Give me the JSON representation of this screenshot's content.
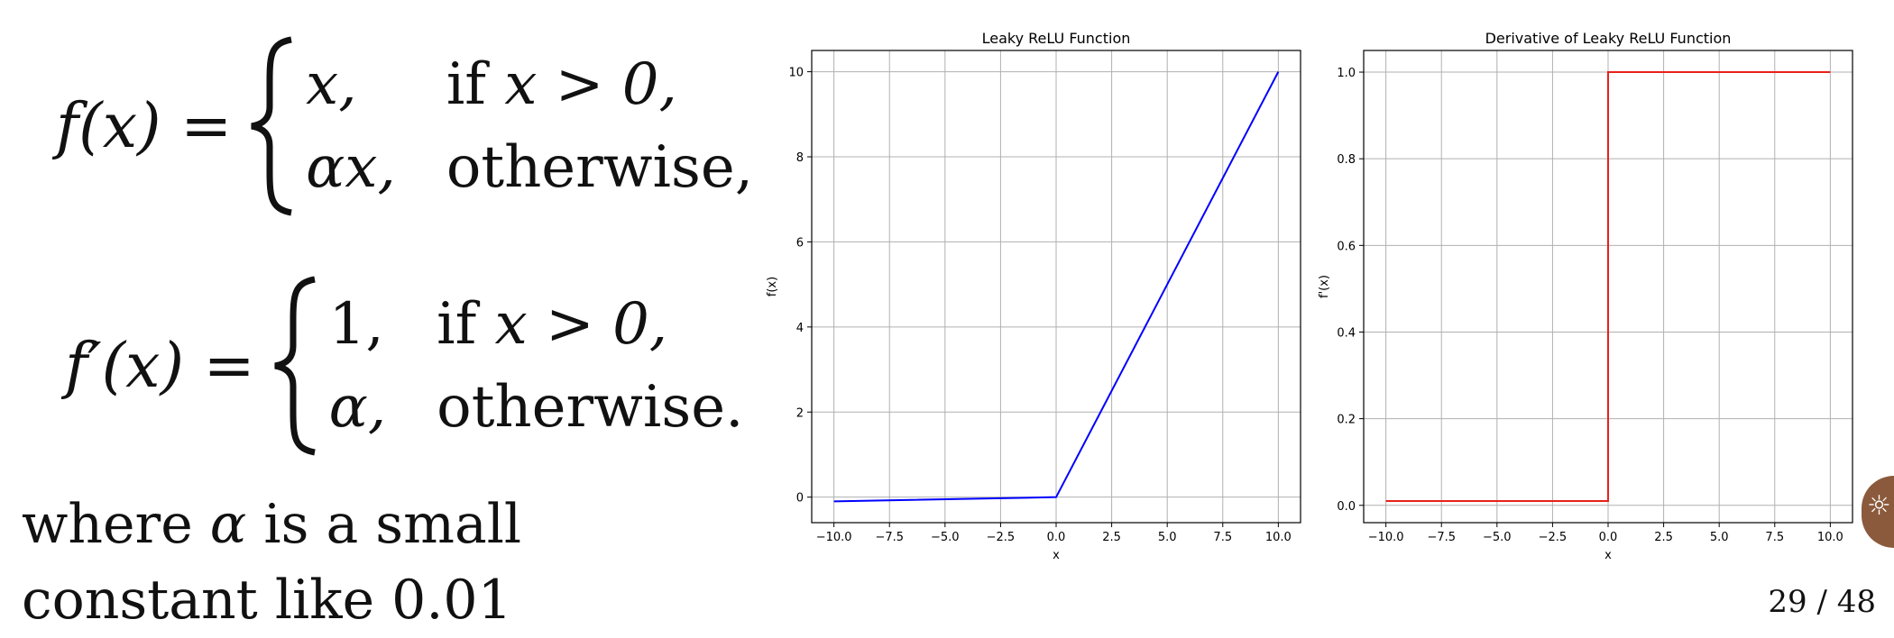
{
  "formula1": {
    "lhs": "f(x) =",
    "case1_value": "x,",
    "case1_cond_if": "if",
    "case1_cond": "x > 0,",
    "case2_value": "αx,",
    "case2_cond": "otherwise,"
  },
  "formula2": {
    "lhs": "f′(x) =",
    "case1_value": "1,",
    "case1_cond_if": "if",
    "case1_cond": "x > 0,",
    "case2_value": "α,",
    "case2_cond": "otherwise."
  },
  "note": {
    "part1": "where",
    "alpha": "α",
    "part2": "is a small constant like 0.01"
  },
  "page_number": "29 / 48",
  "chart_data": [
    {
      "type": "line",
      "title": "Leaky ReLU Function",
      "xlabel": "x",
      "ylabel": "f(x)",
      "xlim": [
        -11,
        11
      ],
      "ylim": [
        -0.6,
        10.5
      ],
      "xticks": [
        -10.0,
        -7.5,
        -5.0,
        -2.5,
        0.0,
        2.5,
        5.0,
        7.5,
        10.0
      ],
      "xtick_labels": [
        "−10.0",
        "−7.5",
        "−5.0",
        "−2.5",
        "0.0",
        "2.5",
        "5.0",
        "7.5",
        "10.0"
      ],
      "yticks": [
        0,
        2,
        4,
        6,
        8,
        10
      ],
      "ytick_labels": [
        "0",
        "2",
        "4",
        "6",
        "8",
        "10"
      ],
      "grid": true,
      "series": [
        {
          "color": "#0000ff",
          "x": [
            -10,
            0,
            10
          ],
          "y": [
            -0.1,
            0,
            10
          ]
        }
      ]
    },
    {
      "type": "line",
      "title": "Derivative of Leaky ReLU Function",
      "xlabel": "x",
      "ylabel": "f'(x)",
      "xlim": [
        -11,
        11
      ],
      "ylim": [
        -0.04,
        1.05
      ],
      "xticks": [
        -10.0,
        -7.5,
        -5.0,
        -2.5,
        0.0,
        2.5,
        5.0,
        7.5,
        10.0
      ],
      "xtick_labels": [
        "−10.0",
        "−7.5",
        "−5.0",
        "−2.5",
        "0.0",
        "2.5",
        "5.0",
        "7.5",
        "10.0"
      ],
      "yticks": [
        0.0,
        0.2,
        0.4,
        0.6,
        0.8,
        1.0
      ],
      "ytick_labels": [
        "0.0",
        "0.2",
        "0.4",
        "0.6",
        "0.8",
        "1.0"
      ],
      "grid": true,
      "series": [
        {
          "color": "#e8211a",
          "x": [
            -10,
            0,
            0,
            10
          ],
          "y": [
            0.01,
            0.01,
            1,
            1
          ]
        }
      ]
    }
  ]
}
